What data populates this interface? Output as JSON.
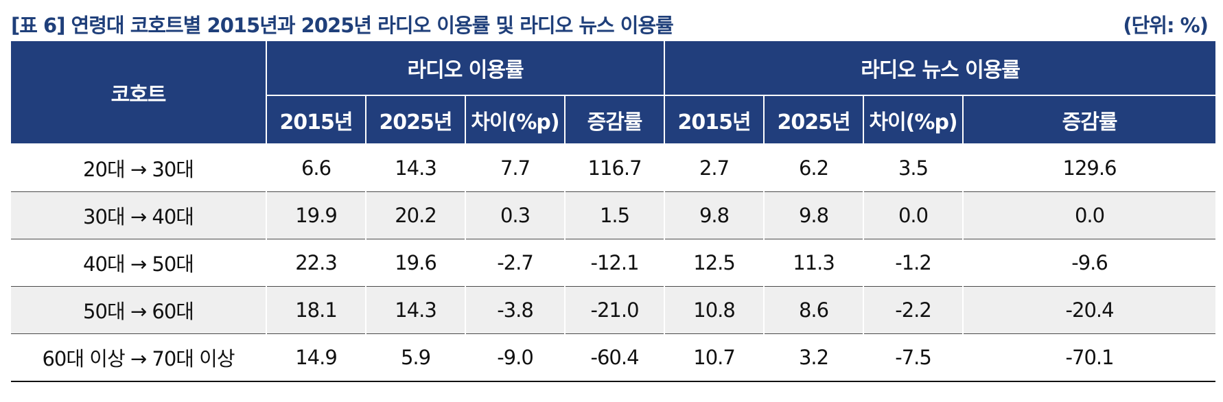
{
  "title": "[표 6] 연령대 코호트별 2015년과 2025년 라디오 이용률 및 라디오 뉴스 이용률",
  "unit": "(단위: %)",
  "table": {
    "cohort_header": "코호트",
    "group_headers": [
      "라디오 이용률",
      "라디오 뉴스 이용률"
    ],
    "sub_headers": [
      "2015년",
      "2025년",
      "차이(%p)",
      "증감률",
      "2015년",
      "2025년",
      "차이(%p)",
      "증감률"
    ],
    "rows": [
      [
        "20대 → 30대",
        "6.6",
        "14.3",
        "7.7",
        "116.7",
        "2.7",
        "6.2",
        "3.5",
        "129.6"
      ],
      [
        "30대 → 40대",
        "19.9",
        "20.2",
        "0.3",
        "1.5",
        "9.8",
        "9.8",
        "0.0",
        "0.0"
      ],
      [
        "40대 → 50대",
        "22.3",
        "19.6",
        "-2.7",
        "-12.1",
        "12.5",
        "11.3",
        "-1.2",
        "-9.6"
      ],
      [
        "50대 → 60대",
        "18.1",
        "14.3",
        "-3.8",
        "-21.0",
        "10.8",
        "8.6",
        "-2.2",
        "-20.4"
      ],
      [
        "60대 이상 → 70대 이상",
        "14.9",
        "5.9",
        "-9.0",
        "-60.4",
        "10.7",
        "3.2",
        "-7.5",
        "-70.1"
      ]
    ]
  },
  "colors": {
    "header_bg": "#213e7c",
    "title_text": "#1f3f7a",
    "shaded_row": "#efefef"
  }
}
